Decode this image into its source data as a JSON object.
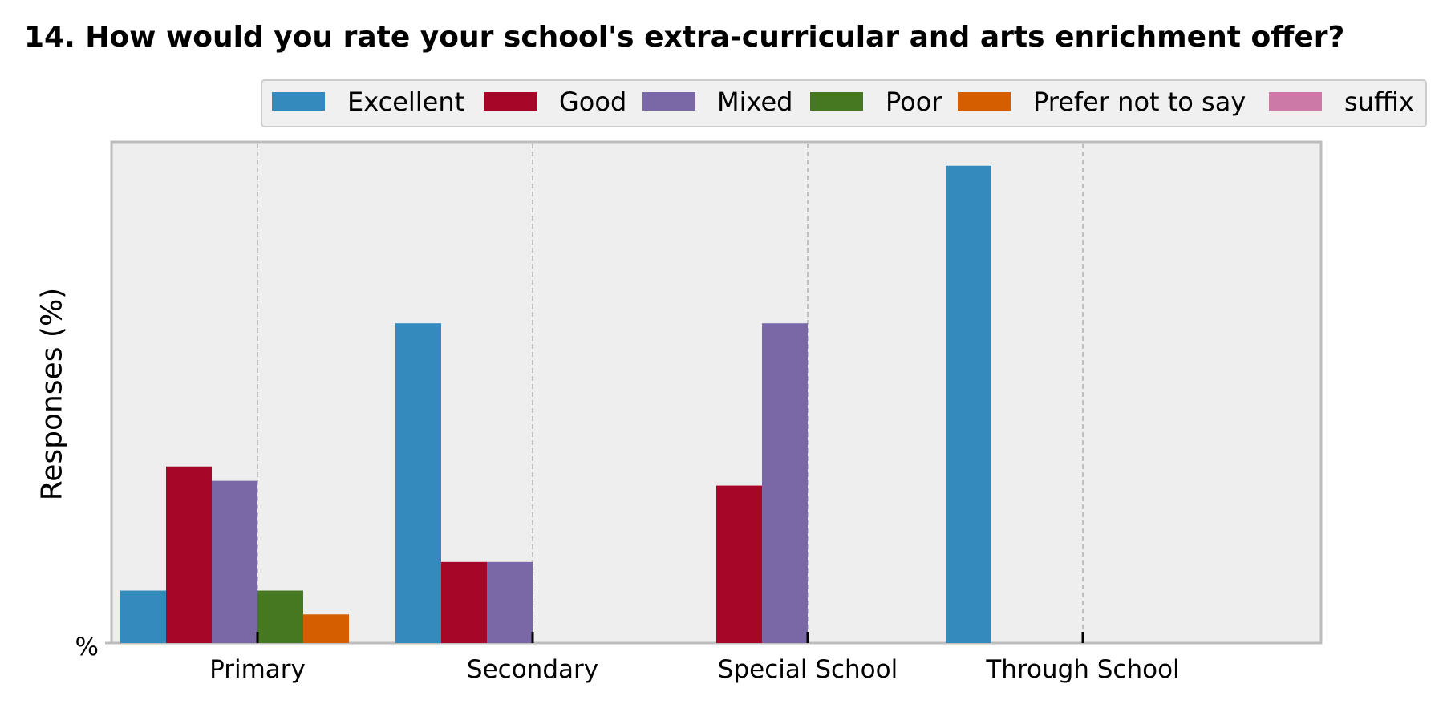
{
  "chart_data": {
    "type": "bar",
    "title": "14. How would you rate your school's extra-curricular and arts enrichment offer?",
    "xlabel": "",
    "ylabel": "Responses (%)",
    "y_tick_label": "%",
    "ylim": [
      0,
      105
    ],
    "grid": "x-dashed",
    "legend_position": "top-right",
    "categories": [
      "Primary",
      "Secondary",
      "Special School",
      "Through School"
    ],
    "series": [
      {
        "name": "Excellent",
        "color": "#348abd",
        "values": [
          11,
          67,
          0,
          100
        ]
      },
      {
        "name": "Good",
        "color": "#a60628",
        "values": [
          37,
          17,
          33,
          0
        ]
      },
      {
        "name": "Mixed",
        "color": "#7a68a6",
        "values": [
          34,
          17,
          67,
          0
        ]
      },
      {
        "name": "Poor",
        "color": "#467821",
        "values": [
          11,
          0,
          0,
          0
        ]
      },
      {
        "name": "Prefer not to say",
        "color": "#d55e00",
        "values": [
          6,
          0,
          0,
          0
        ]
      },
      {
        "name": "suffix",
        "color": "#cc79a7",
        "values": [
          0,
          0,
          0,
          0
        ]
      }
    ]
  }
}
